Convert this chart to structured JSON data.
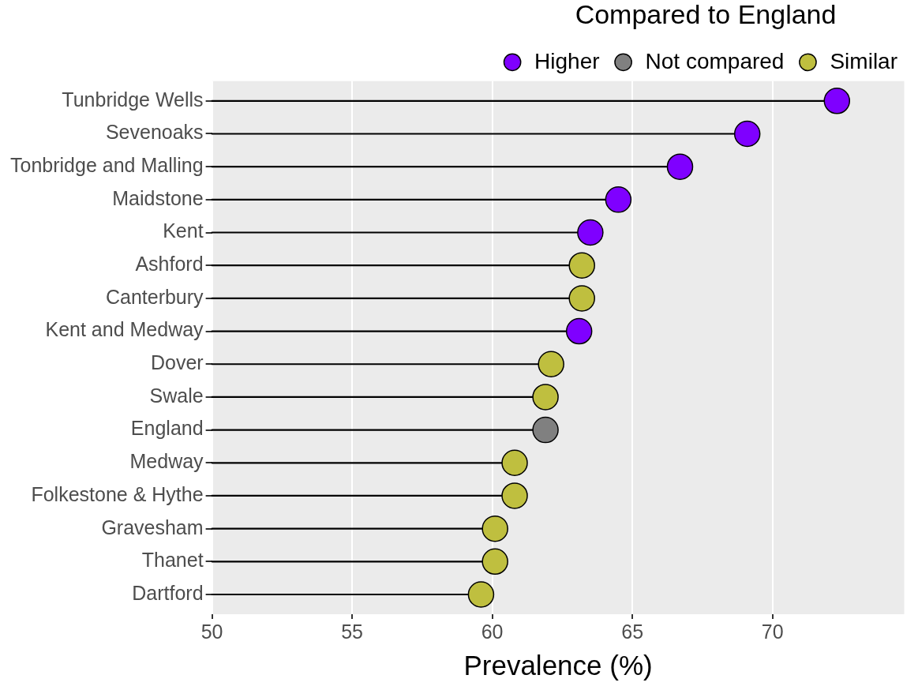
{
  "chart_data": {
    "type": "lollipop",
    "orientation": "horizontal",
    "xlabel": "Prevalence (%)",
    "legend_title": "Compared to England",
    "legend": "top",
    "grid": "x",
    "marker": "circle",
    "categories": [
      "Tunbridge Wells",
      "Sevenoaks",
      "Tonbridge and Malling",
      "Maidstone",
      "Kent",
      "Ashford",
      "Canterbury",
      "Kent and Medway",
      "Dover",
      "Swale",
      "England",
      "Medway",
      "Folkestone & Hythe",
      "Gravesham",
      "Thanet",
      "Dartford"
    ],
    "series": [
      {
        "name": "Higher",
        "color": "#7f00ff",
        "values": [
          72.3,
          69.1,
          66.7,
          64.5,
          63.5,
          null,
          null,
          63.1,
          null,
          null,
          null,
          null,
          null,
          null,
          null,
          null
        ]
      },
      {
        "name": "Not compared",
        "color": "#808080",
        "values": [
          null,
          null,
          null,
          null,
          null,
          null,
          null,
          null,
          null,
          null,
          61.9,
          null,
          null,
          null,
          null,
          null
        ]
      },
      {
        "name": "Similar",
        "color": "#bfbf3f",
        "values": [
          null,
          null,
          null,
          null,
          null,
          63.2,
          63.2,
          null,
          62.1,
          61.9,
          null,
          60.8,
          60.8,
          60.1,
          60.1,
          59.6
        ]
      }
    ],
    "xlim": [
      50,
      74.7
    ],
    "xticks": [
      50,
      55,
      60,
      65,
      70
    ]
  }
}
